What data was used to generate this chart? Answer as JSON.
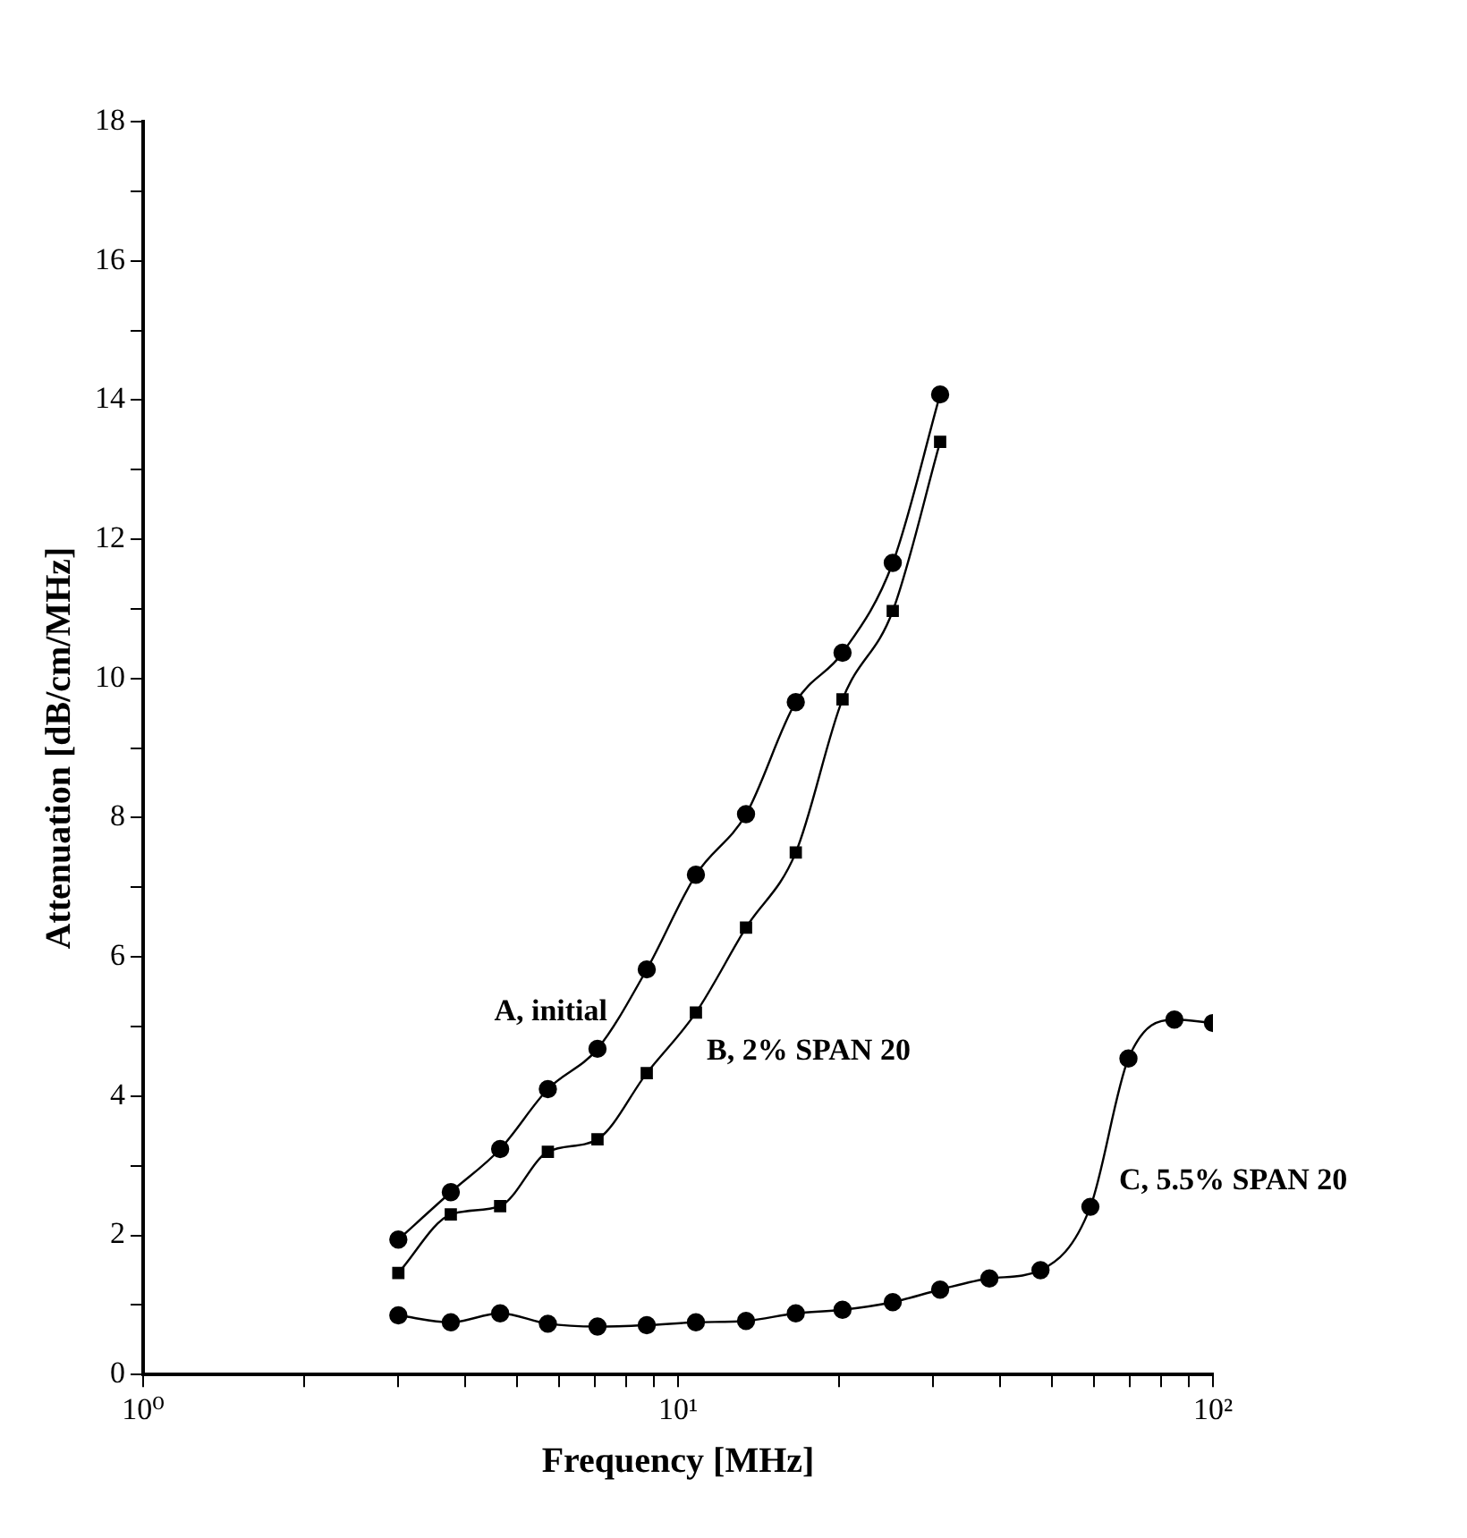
{
  "chart_data": {
    "type": "line",
    "xlabel": "Frequency [MHz]",
    "ylabel": "Attenuation [dB/cm/MHz]",
    "log": "x",
    "grid": false,
    "legend": false,
    "xlim": [
      1,
      100
    ],
    "xticks": [
      {
        "value": 1,
        "label": "10⁰"
      },
      {
        "value": 2,
        "label": null
      },
      {
        "value": 3,
        "label": null
      },
      {
        "value": 4,
        "label": null
      },
      {
        "value": 5,
        "label": null
      },
      {
        "value": 6,
        "label": null
      },
      {
        "value": 7,
        "label": null
      },
      {
        "value": 8,
        "label": null
      },
      {
        "value": 9,
        "label": null
      },
      {
        "value": 10,
        "label": "10¹"
      },
      {
        "value": 20,
        "label": null
      },
      {
        "value": 30,
        "label": null
      },
      {
        "value": 40,
        "label": null
      },
      {
        "value": 50,
        "label": null
      },
      {
        "value": 60,
        "label": null
      },
      {
        "value": 70,
        "label": null
      },
      {
        "value": 80,
        "label": null
      },
      {
        "value": 90,
        "label": null
      },
      {
        "value": 100,
        "label": "10²"
      }
    ],
    "ylim": [
      0,
      18
    ],
    "yticks": [
      0,
      {
        "value": 1,
        "label": null
      },
      2,
      {
        "value": 3,
        "label": null
      },
      4,
      {
        "value": 5,
        "label": null
      },
      6,
      {
        "value": 7,
        "label": null
      },
      8,
      {
        "value": 9,
        "label": null
      },
      10,
      {
        "value": 11,
        "label": null
      },
      12,
      {
        "value": 13,
        "label": null
      },
      14,
      {
        "value": 15,
        "label": null
      },
      16,
      {
        "value": 17,
        "label": null
      },
      18
    ],
    "series": [
      {
        "name": "A, initial",
        "color": "#000000",
        "marker": "circle",
        "x": [
          3,
          3.76,
          4.65,
          5.71,
          7.07,
          8.74,
          10.8,
          13.4,
          16.6,
          20.3,
          25.2,
          30.9
        ],
        "values": [
          1.94,
          2.62,
          3.24,
          4.1,
          4.68,
          5.82,
          7.18,
          8.05,
          9.66,
          10.37,
          11.66,
          14.08
        ]
      },
      {
        "name": "B, 2% SPAN 20",
        "color": "#000000",
        "marker": "square",
        "x": [
          3,
          3.76,
          4.65,
          5.71,
          7.07,
          8.74,
          10.8,
          13.4,
          16.6,
          20.3,
          25.2,
          30.9
        ],
        "values": [
          1.46,
          2.3,
          2.42,
          3.2,
          3.38,
          4.33,
          5.2,
          6.42,
          7.5,
          9.7,
          10.97,
          13.4
        ]
      },
      {
        "name": "C, 5.5% SPAN 20",
        "color": "#000000",
        "marker": "circle",
        "x": [
          3,
          3.76,
          4.65,
          5.71,
          7.07,
          8.74,
          10.8,
          13.4,
          16.6,
          20.3,
          25.2,
          30.9,
          38.2,
          47.6,
          59,
          69.5,
          84.7,
          100
        ],
        "values": [
          0.85,
          0.75,
          0.88,
          0.73,
          0.69,
          0.71,
          0.75,
          0.77,
          0.88,
          0.93,
          1.04,
          1.22,
          1.38,
          1.5,
          2.41,
          4.54,
          5.1,
          5.05
        ]
      }
    ]
  }
}
